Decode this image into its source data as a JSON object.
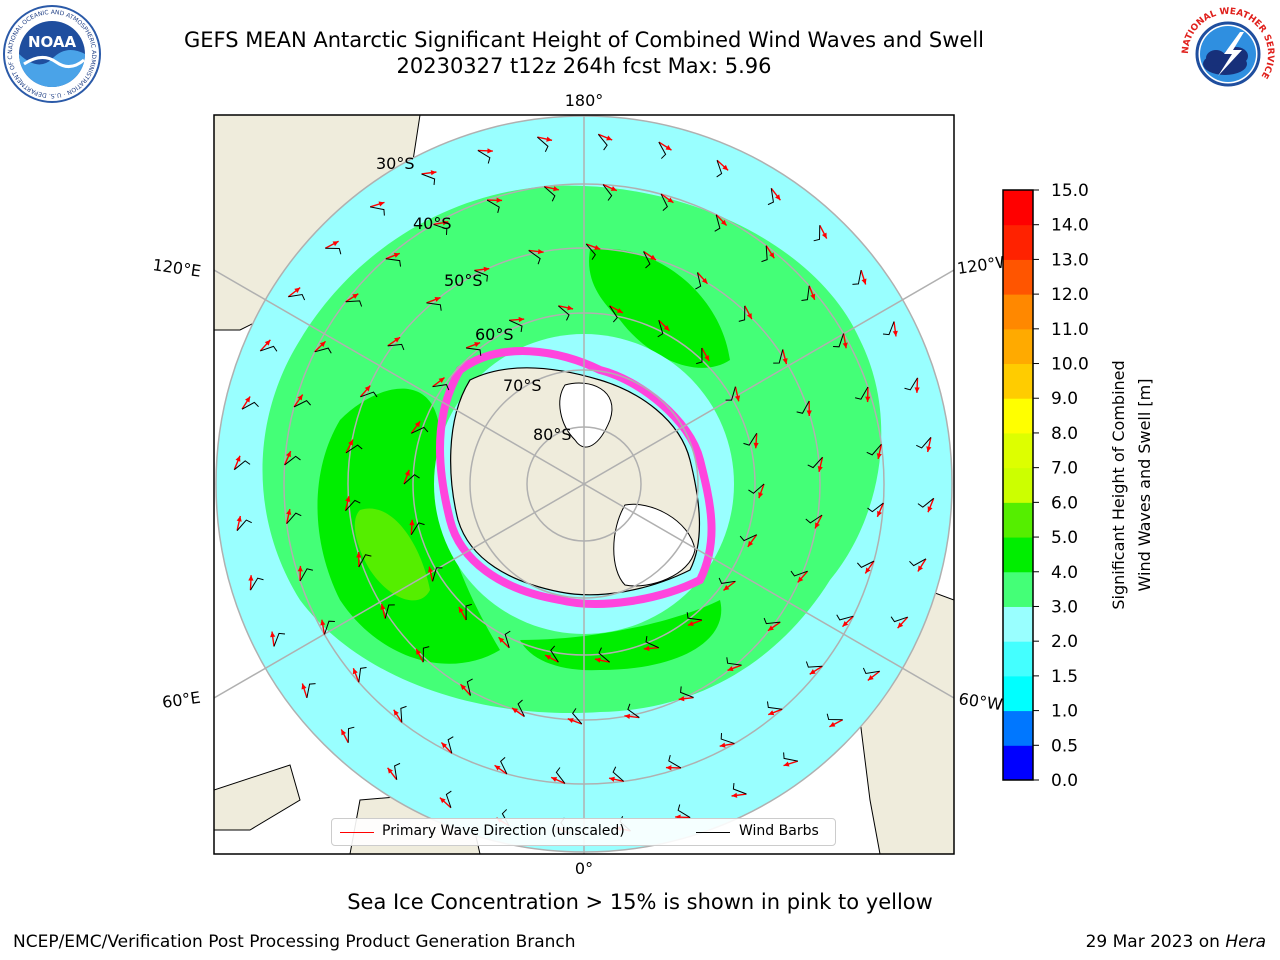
{
  "header": {
    "title_line1": "GEFS MEAN Antarctic Significant Height of Combined Wind Waves and Swell",
    "title_line2": "20230327 t12z 264h fcst   Max: 5.96"
  },
  "logos": {
    "noaa_text": "NOAA",
    "noaa_ring": "NATIONAL OCEANIC AND ATMOSPHERIC ADMINISTRATION · U.S. DEPARTMENT OF COMMERCE",
    "nws_ring": "NATIONAL WEATHER SERVICE"
  },
  "map": {
    "longitude_labels": {
      "top": "180°",
      "bottom": "0°",
      "upper_left": "120°E",
      "lower_left": "60°E",
      "upper_right": "120°W",
      "lower_right": "60°W"
    },
    "latitude_labels": [
      "30°S",
      "40°S",
      "50°S",
      "60°S",
      "70°S",
      "80°S"
    ],
    "colors": {
      "land": "#efecdc",
      "ice_sheet": "#ffffff",
      "sea_ice": "#ff44dd",
      "arrow": "#ff0000",
      "barb": "#000000",
      "grid": "#b0b0b0"
    }
  },
  "legend": {
    "wave_label": "Primary Wave Direction (unscaled)",
    "wind_label": "Wind Barbs"
  },
  "colorbar": {
    "label_line1": "Significant Height of Combined",
    "label_line2": "Wind Waves and Swell [m]",
    "ticks": [
      "0.0",
      "0.5",
      "1.0",
      "1.5",
      "2.0",
      "3.0",
      "4.0",
      "5.0",
      "6.0",
      "7.0",
      "8.0",
      "9.0",
      "10.0",
      "11.0",
      "12.0",
      "13.0",
      "14.0",
      "15.0"
    ],
    "colors": [
      "#0000ff",
      "#0077ff",
      "#00ffff",
      "#44ffff",
      "#99ffff",
      "#44ff77",
      "#00ee00",
      "#55ee00",
      "#ccff00",
      "#ddff00",
      "#ffff00",
      "#ffcc00",
      "#ffaa00",
      "#ff8800",
      "#ff5500",
      "#ff2200",
      "#ff0000"
    ]
  },
  "footer": {
    "sea_ice_note": "Sea Ice Concentration > 15% is shown in pink to yellow",
    "credit_left": "NCEP/EMC/Verification Post Processing Product Generation Branch",
    "credit_right_date": "29 Mar 2023 on ",
    "credit_right_machine": "Hera"
  }
}
